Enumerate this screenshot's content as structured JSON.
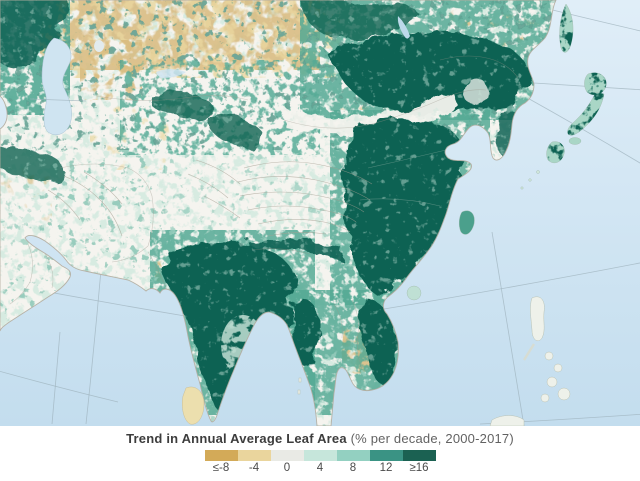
{
  "map": {
    "palette": {
      "ocean_top": "#e0eef8",
      "ocean_bottom": "#c3ddee",
      "land": "#f5f4ef",
      "coast": "#b3ac9f",
      "graticule": "#9db0bb",
      "pale_green": "#cde8dd",
      "mid_green": "#55aa95",
      "dark_green": "#0d6253",
      "tan": "#d8ba7e",
      "pale_tan": "#ead79f",
      "contour": "#a79f93",
      "border": "#9c958a",
      "lake": "#cfe4f1",
      "island_pale": "#eef1ea",
      "text_dark": "#3d3d3d",
      "text_mid": "#626262"
    }
  },
  "legend": {
    "title_bold": "Trend in Annual Average Leaf Area",
    "title_normal": "(% per decade, 2000-2017)",
    "classes": [
      {
        "label": "≤-8",
        "color": "#d3aa58"
      },
      {
        "label": "-4",
        "color": "#ead59d"
      },
      {
        "label": "0",
        "color": "#e9eae5"
      },
      {
        "label": "4",
        "color": "#c6e6db"
      },
      {
        "label": "8",
        "color": "#93d0c1"
      },
      {
        "label": "12",
        "color": "#3a9384"
      },
      {
        "label": "≥16",
        "color": "#1b6152"
      }
    ]
  }
}
